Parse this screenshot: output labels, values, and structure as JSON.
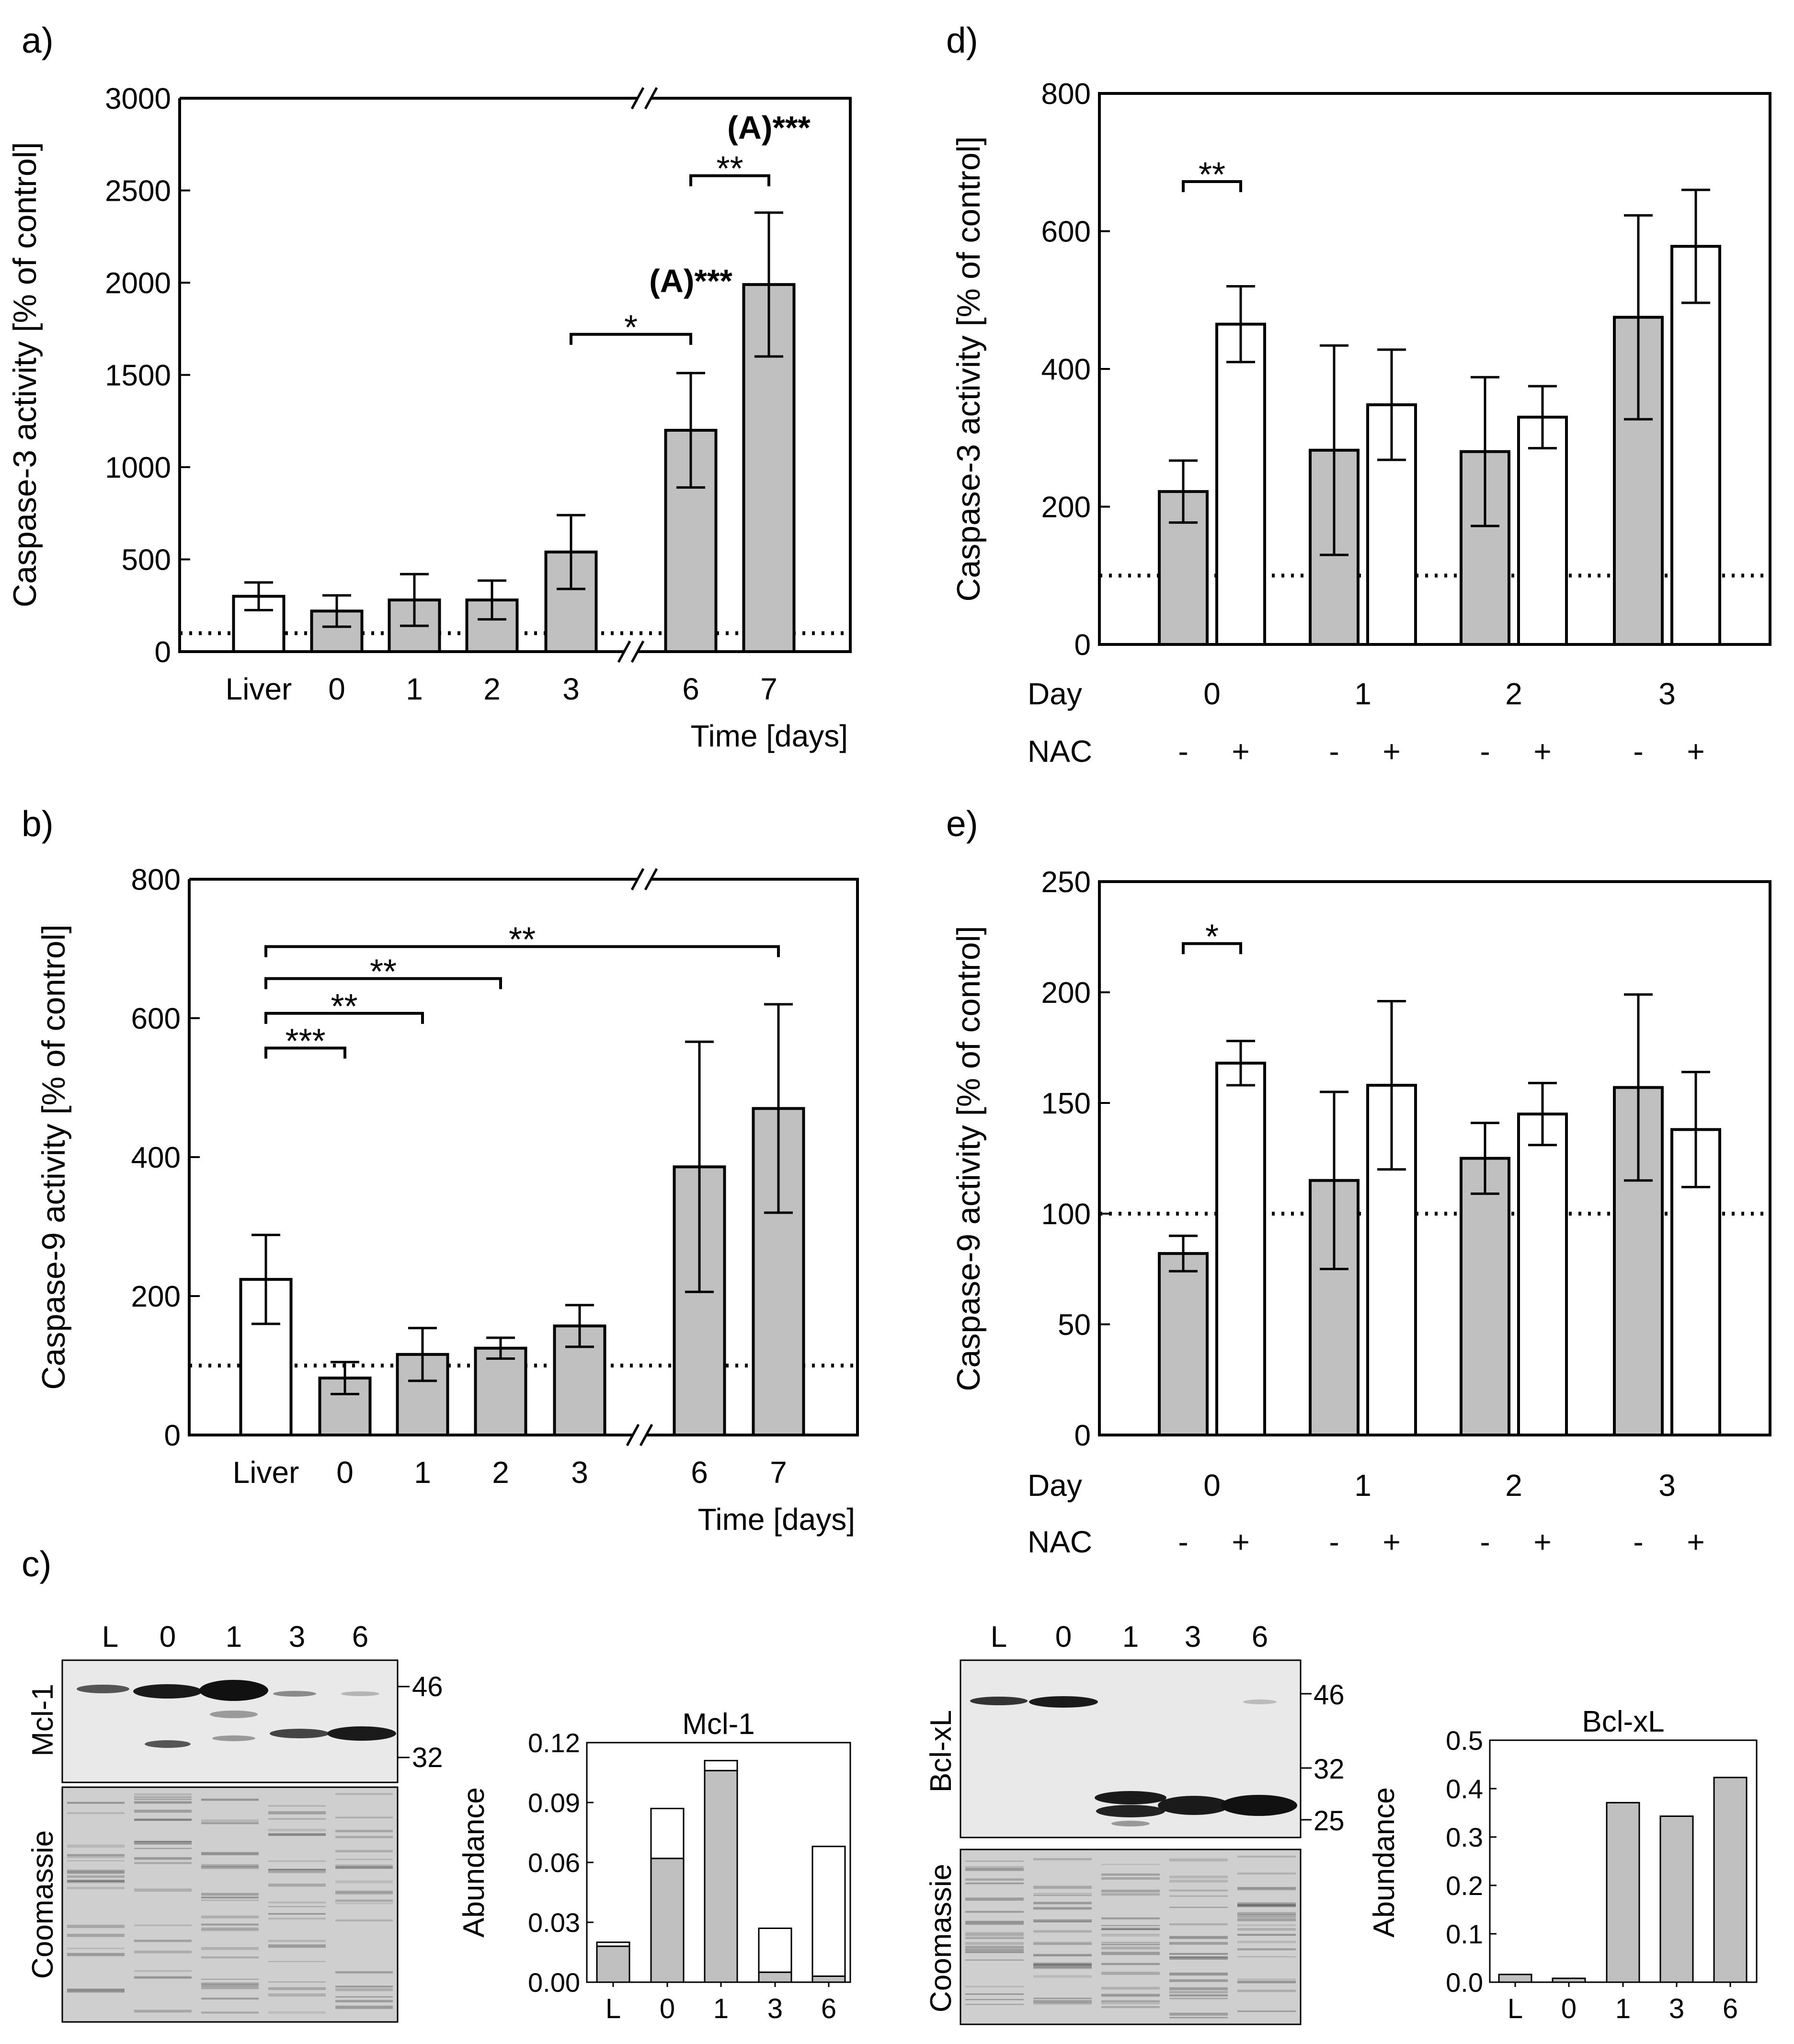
{
  "chart_data": [
    {
      "id": "a",
      "type": "bar",
      "panel_label": "a)",
      "ylabel": "Caspase-3 activity [% of control]",
      "xlabel": "Time [days]",
      "ylim": [
        0,
        3000
      ],
      "yticks": [
        0,
        500,
        1000,
        1500,
        2000,
        2500,
        3000
      ],
      "baseline": 100,
      "axis_break": true,
      "categories": [
        "Liver",
        "0",
        "1",
        "2",
        "3",
        "6",
        "7"
      ],
      "values": [
        300,
        220,
        280,
        280,
        540,
        1200,
        1990
      ],
      "errors": [
        75,
        85,
        140,
        105,
        200,
        310,
        390
      ],
      "fills": [
        "#ffffff",
        "#c0c0c0",
        "#c0c0c0",
        "#c0c0c0",
        "#c0c0c0",
        "#c0c0c0",
        "#c0c0c0"
      ],
      "significance": [
        {
          "from": 4,
          "to": 5,
          "y": 1720,
          "text": "*"
        },
        {
          "from": 5,
          "to": 6,
          "y": 2580,
          "text": "**"
        }
      ],
      "annotations": [
        {
          "index": 5,
          "y": 1950,
          "text": "(A)***"
        },
        {
          "index": 6,
          "y": 2780,
          "text": "(A)***"
        }
      ]
    },
    {
      "id": "b",
      "type": "bar",
      "panel_label": "b)",
      "ylabel": "Caspase-9 activity [% of control]",
      "xlabel": "Time [days]",
      "ylim": [
        0,
        800
      ],
      "yticks": [
        0,
        200,
        400,
        600,
        800
      ],
      "baseline": 100,
      "axis_break": true,
      "categories": [
        "Liver",
        "0",
        "1",
        "2",
        "3",
        "6",
        "7"
      ],
      "values": [
        224,
        82,
        116,
        125,
        157,
        386,
        470
      ],
      "errors": [
        64,
        23,
        38,
        15,
        30,
        180,
        150
      ],
      "fills": [
        "#ffffff",
        "#c0c0c0",
        "#c0c0c0",
        "#c0c0c0",
        "#c0c0c0",
        "#c0c0c0",
        "#c0c0c0"
      ],
      "significance": [
        {
          "from": 0,
          "to": 6,
          "y": 703,
          "text": "**"
        },
        {
          "from": 0,
          "to": 3,
          "y": 657,
          "text": "**"
        },
        {
          "from": 0,
          "to": 2,
          "y": 607,
          "text": "**"
        },
        {
          "from": 0,
          "to": 1,
          "y": 557,
          "text": "***"
        }
      ]
    },
    {
      "id": "d",
      "type": "bar",
      "panel_label": "d)",
      "ylabel": "Caspase-3 activity [% of control]",
      "ylim": [
        0,
        800
      ],
      "yticks": [
        0,
        200,
        400,
        600,
        800
      ],
      "baseline": 100,
      "row1_label": "Day",
      "row2_label": "NAC",
      "groups": [
        "0",
        "1",
        "2",
        "3"
      ],
      "series": [
        {
          "name": "-",
          "fill": "#c0c0c0",
          "values": [
            222,
            282,
            280,
            475
          ],
          "errors": [
            45,
            152,
            108,
            148
          ]
        },
        {
          "name": "+",
          "fill": "#ffffff",
          "values": [
            465,
            348,
            330,
            578
          ],
          "errors": [
            55,
            80,
            45,
            82
          ]
        }
      ],
      "significance": [
        {
          "group": 0,
          "y": 672,
          "text": "**"
        }
      ]
    },
    {
      "id": "e",
      "type": "bar",
      "panel_label": "e)",
      "ylabel": "Caspase-9 activity [% of control]",
      "ylim": [
        0,
        250
      ],
      "yticks": [
        0,
        50,
        100,
        150,
        200,
        250
      ],
      "baseline": 100,
      "row1_label": "Day",
      "row2_label": "NAC",
      "groups": [
        "0",
        "1",
        "2",
        "3"
      ],
      "series": [
        {
          "name": "-",
          "fill": "#c0c0c0",
          "values": [
            82,
            115,
            125,
            157
          ],
          "errors": [
            8,
            40,
            16,
            42
          ]
        },
        {
          "name": "+",
          "fill": "#ffffff",
          "values": [
            168,
            158,
            145,
            138
          ],
          "errors": [
            10,
            38,
            14,
            26
          ]
        }
      ],
      "significance": [
        {
          "group": 0,
          "y": 222,
          "text": "*"
        }
      ]
    },
    {
      "id": "c1",
      "type": "bar",
      "stacked": true,
      "title": "Mcl-1",
      "ylabel": "Abundance",
      "ylim": [
        0,
        0.12
      ],
      "yticks": [
        "0.00",
        "0.03",
        "0.06",
        "0.09",
        "0.12"
      ],
      "categories": [
        "L",
        "0",
        "1",
        "3",
        "6"
      ],
      "series": [
        {
          "name": "lower",
          "fill": "#c0c0c0",
          "values": [
            0.018,
            0.062,
            0.106,
            0.005,
            0.003
          ]
        },
        {
          "name": "upper",
          "fill": "#ffffff",
          "values": [
            0.002,
            0.025,
            0.005,
            0.022,
            0.065
          ]
        }
      ]
    },
    {
      "id": "c2",
      "type": "bar",
      "title": "Bcl-xL",
      "ylabel": "Abundance",
      "ylim": [
        0,
        0.5
      ],
      "yticks": [
        "0.0",
        "0.1",
        "0.2",
        "0.3",
        "0.4",
        "0.5"
      ],
      "categories": [
        "L",
        "0",
        "1",
        "3",
        "6"
      ],
      "values": [
        0.016,
        0.008,
        0.371,
        0.343,
        0.423
      ],
      "fill": "#c0c0c0"
    }
  ],
  "blots": {
    "panel_label": "c)",
    "mcl1": {
      "label": "Mcl-1",
      "lanes": [
        "L",
        "0",
        "1",
        "3",
        "6"
      ],
      "markers": [
        "46",
        "32"
      ],
      "loading_label": "Coomassie"
    },
    "bclxl": {
      "label": "Bcl-xL",
      "lanes": [
        "L",
        "0",
        "1",
        "3",
        "6"
      ],
      "markers": [
        "46",
        "32",
        "25"
      ],
      "loading_label": "Coomassie"
    }
  }
}
